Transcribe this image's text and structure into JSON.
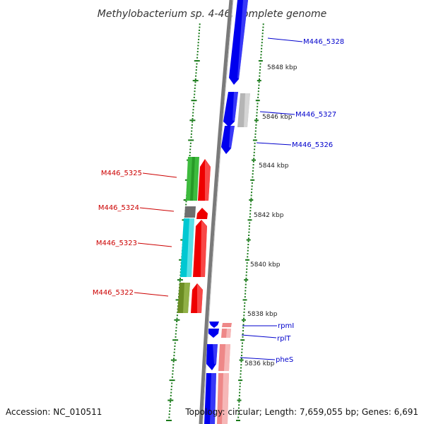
{
  "title": "Methylobacterium sp. 4-46, complete genome",
  "footer": {
    "accession": "Accession: NC_010511",
    "topology": "Topology: circular; Length: 7,659,055 bp; Genes: 6,691"
  },
  "colors": {
    "backbone": "#7a7a7a",
    "tick": "#1a7a1a",
    "label_forward": "#cc0000",
    "label_reverse": "#0000cc",
    "blue": "#0000ee",
    "gray": "#b5b5b5",
    "green": "#3dbb3d",
    "red": "#ee0000",
    "darkgray": "#6e6e6e",
    "cyan": "#00c8d2",
    "olive": "#6b8c23",
    "pink": "#ee8888"
  },
  "scale": {
    "labels": [
      "5848 kbp",
      "5846 kbp",
      "5844 kbp",
      "5842 kbp",
      "5840 kbp",
      "5838 kbp",
      "5836 kbp"
    ]
  },
  "gene_labels": {
    "m5328": "M446_5328",
    "m5327": "M446_5327",
    "m5326": "M446_5326",
    "m5325": "M446_5325",
    "m5324": "M446_5324",
    "m5323": "M446_5323",
    "m5322": "M446_5322",
    "rpmI": "rpmI",
    "rplT": "rplT",
    "pheS": "pheS"
  }
}
